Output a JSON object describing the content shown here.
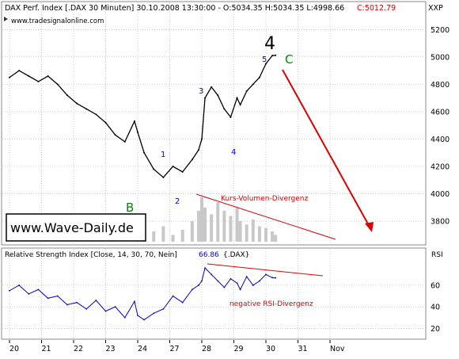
{
  "header": {
    "title": "DAX Perf. Index [.DAX  30 Minuten] 30.10.2008 13:30:00 - O:5034.35 H:5034.35 L:4998.66",
    "close_value": "C:5012.79",
    "symbol": "XXP",
    "source": "www.tradesignalonline.com"
  },
  "rsi_header": {
    "text": "Relative Strength Index [Close, 14, 30, 70, Nein]",
    "value": "66.86",
    "symbol": "{.DAX}",
    "label": "RSI"
  },
  "watermark": "www.Wave-Daily.de",
  "annotations": {
    "wave_4": "4",
    "wave_c": "C",
    "wave_b": "B",
    "sub_1": "1",
    "sub_2": "2",
    "sub_3": "3",
    "sub_4": "4",
    "sub_5": "5",
    "volume_divergence": "Kurs-Volumen-Divergenz",
    "rsi_divergence": "negative RSI-Divergenz"
  },
  "colors": {
    "price": "#000000",
    "rsi_line": "#0000cc",
    "divergence": "#dd0000",
    "wave_blue": "#0000cc",
    "wave_green": "#008800",
    "volume": "#c8c8c8",
    "grid": "#b0b0b0"
  },
  "chart_data": [
    {
      "type": "line",
      "title": "DAX Perf. Index [.DAX  30 Minuten]",
      "x_ticks": [
        "20",
        "21",
        "22",
        "23",
        "24",
        "27",
        "28",
        "29",
        "30",
        "31",
        "Nov"
      ],
      "y_ticks": [
        3800,
        4000,
        4200,
        4400,
        4600,
        4800,
        5000,
        5200
      ],
      "ylim": [
        3650,
        5300
      ],
      "grid": true,
      "price": {
        "x": [
          0,
          0.3,
          0.6,
          0.9,
          1.2,
          1.5,
          1.8,
          2.1,
          2.4,
          2.7,
          3.0,
          3.3,
          3.6,
          3.9,
          4.0,
          4.2,
          4.5,
          4.8,
          5.1,
          5.4,
          5.7,
          5.9,
          6.0,
          6.1,
          6.3,
          6.5,
          6.7,
          6.9,
          7.1,
          7.2,
          7.4,
          7.6,
          7.8,
          8.0,
          8.2,
          8.3
        ],
        "values": [
          4850,
          4900,
          4860,
          4820,
          4860,
          4800,
          4720,
          4660,
          4620,
          4580,
          4520,
          4430,
          4380,
          4530,
          4450,
          4300,
          4180,
          4120,
          4200,
          4160,
          4250,
          4320,
          4400,
          4700,
          4780,
          4720,
          4620,
          4560,
          4700,
          4650,
          4750,
          4800,
          4850,
          4950,
          5010,
          5012
        ]
      },
      "volume_bars": [
        0,
        0,
        0,
        0,
        0,
        0,
        0,
        0,
        0,
        0,
        0,
        0,
        0,
        0,
        20,
        30,
        60,
        90,
        40,
        70,
        120,
        180,
        260,
        200,
        160,
        230,
        180,
        150,
        200,
        120,
        100,
        130,
        90,
        80,
        60,
        40
      ]
    },
    {
      "type": "line",
      "title": "Relative Strength Index",
      "y_ticks": [
        20,
        40,
        60
      ],
      "ylim": [
        10,
        82
      ],
      "series": [
        {
          "name": "Relative Strength Index [Close, 14, 30, 70, Nein]",
          "x": [
            0,
            0.3,
            0.6,
            0.9,
            1.2,
            1.5,
            1.8,
            2.1,
            2.4,
            2.7,
            3.0,
            3.3,
            3.6,
            3.9,
            4.0,
            4.2,
            4.5,
            4.8,
            5.1,
            5.4,
            5.7,
            5.9,
            6.0,
            6.1,
            6.3,
            6.5,
            6.7,
            6.9,
            7.1,
            7.2,
            7.4,
            7.6,
            7.8,
            8.0,
            8.2,
            8.3
          ],
          "values": [
            55,
            60,
            52,
            56,
            48,
            50,
            42,
            44,
            38,
            46,
            36,
            40,
            30,
            45,
            32,
            28,
            34,
            38,
            50,
            44,
            56,
            60,
            64,
            76,
            70,
            64,
            58,
            66,
            62,
            56,
            68,
            60,
            64,
            70,
            67,
            66.86
          ]
        }
      ]
    }
  ]
}
